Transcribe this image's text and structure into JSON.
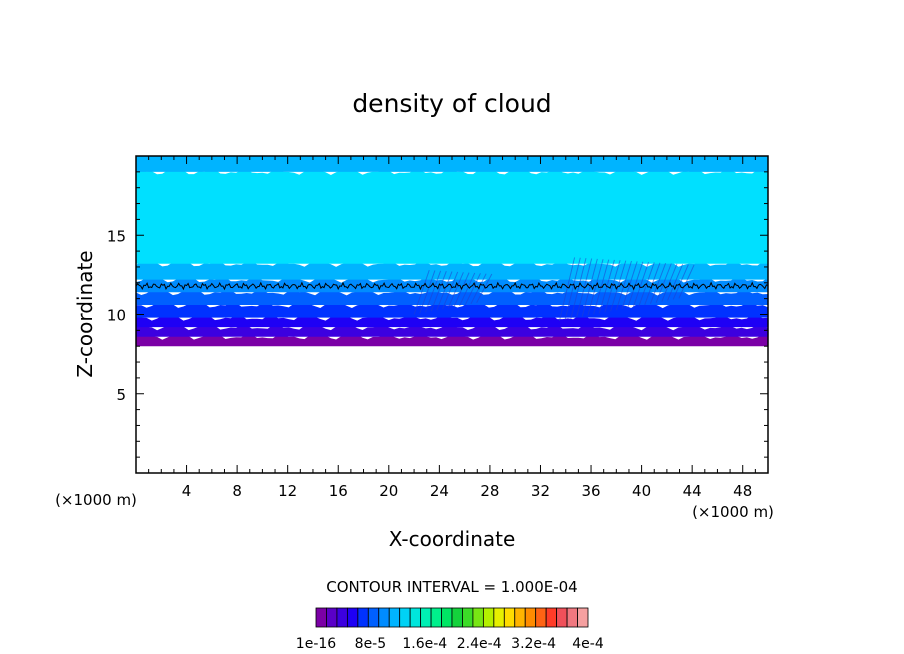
{
  "chart_data": {
    "type": "heatmap",
    "title": "density of cloud",
    "xlabel": "X-coordinate",
    "ylabel": "Z-coordinate",
    "x_unit": "(×1000 m)",
    "y_unit": "(×1000 m)",
    "xlim": [
      0,
      50
    ],
    "ylim": [
      0,
      20
    ],
    "x_ticks": [
      "4",
      "8",
      "12",
      "16",
      "20",
      "24",
      "28",
      "32",
      "36",
      "40",
      "44",
      "48"
    ],
    "y_ticks": [
      "5",
      "10",
      "15"
    ],
    "contour_interval_text": "CONTOUR INTERVAL = 1.000E-04",
    "colorbar_labels": [
      "1e-16",
      "8e-5",
      "1.6e-4",
      "2.4e-4",
      "3.2e-4",
      "4e-4"
    ],
    "colorbar_colors": [
      "#7b00a6",
      "#5a00c8",
      "#3c00e0",
      "#1e00f5",
      "#0032ff",
      "#0060ff",
      "#008cff",
      "#00b4ff",
      "#00d2f5",
      "#00e6dc",
      "#00f0b4",
      "#00f08c",
      "#00e664",
      "#14d23c",
      "#3cdc28",
      "#78e614",
      "#b4f000",
      "#e6f000",
      "#ffdc00",
      "#ffb400",
      "#ff8c00",
      "#ff6414",
      "#ff3c28",
      "#f0505a",
      "#f07880",
      "#f5a0a0"
    ],
    "layers": [
      {
        "z_bottom": 8.0,
        "z_top": 8.6,
        "color": "#7b00a6"
      },
      {
        "z_bottom": 8.6,
        "z_top": 9.2,
        "color": "#3c00e0"
      },
      {
        "z_bottom": 9.2,
        "z_top": 9.8,
        "color": "#1e00f5"
      },
      {
        "z_bottom": 9.8,
        "z_top": 10.6,
        "color": "#0032ff"
      },
      {
        "z_bottom": 10.6,
        "z_top": 11.4,
        "color": "#0060ff"
      },
      {
        "z_bottom": 11.4,
        "z_top": 12.2,
        "color": "#008cff"
      },
      {
        "z_bottom": 12.2,
        "z_top": 13.2,
        "color": "#00b4ff"
      },
      {
        "z_bottom": 13.2,
        "z_top": 19.0,
        "color": "#00e0ff"
      },
      {
        "z_bottom": 19.0,
        "z_top": 20.0,
        "color": "#00b4ff"
      }
    ],
    "contour_line_level_z": 11.8
  }
}
